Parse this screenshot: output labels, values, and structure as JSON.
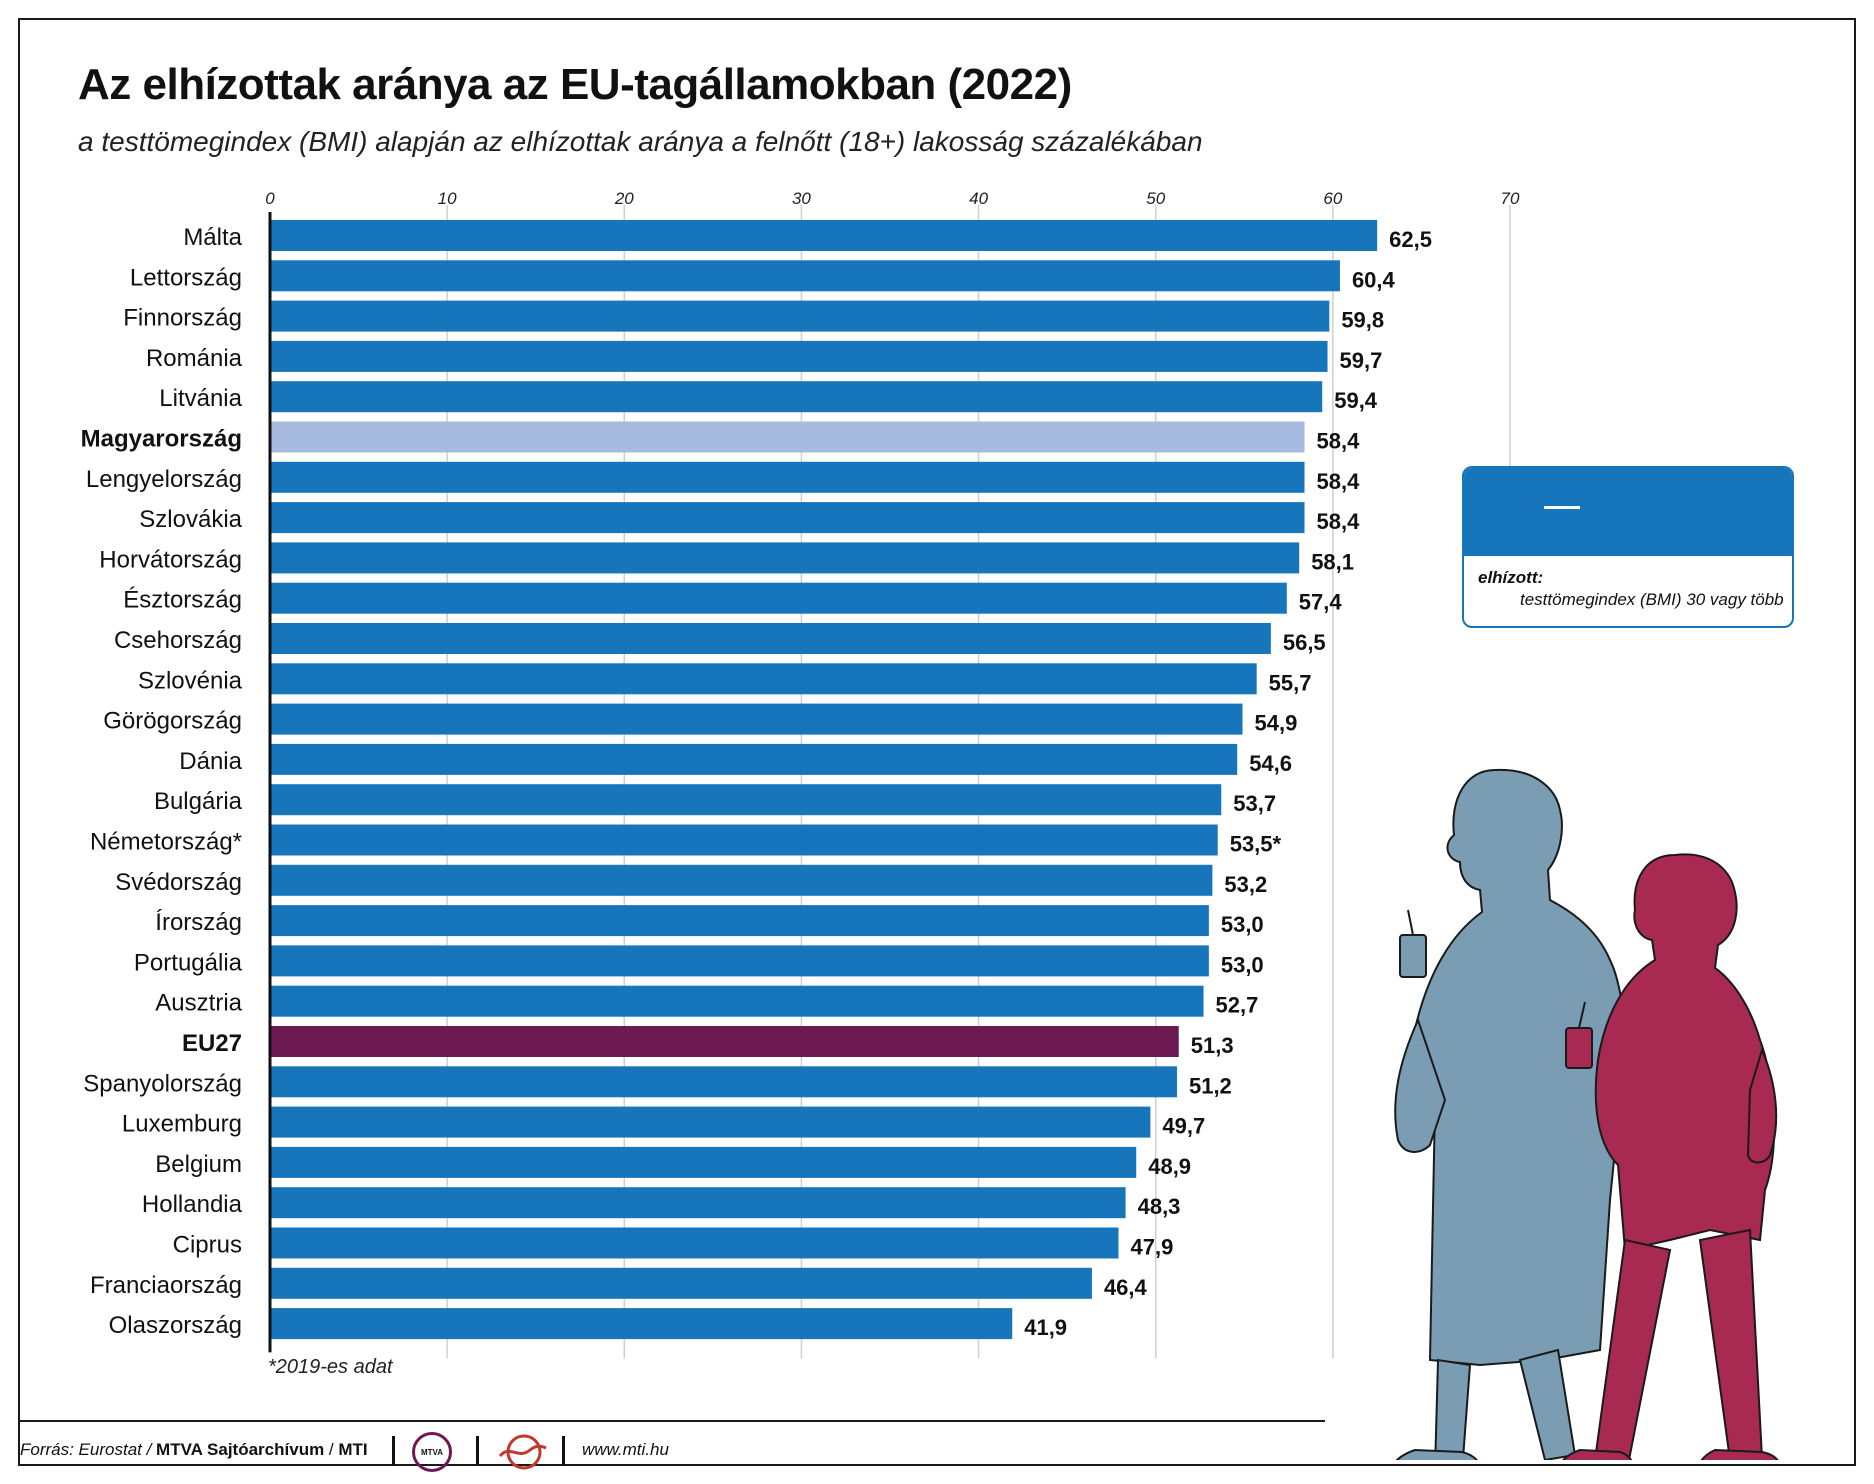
{
  "header": {
    "title": "Az elhízottak aránya az EU-tagállamokban (2022)",
    "subtitle": "a testtömegindex (BMI) alapján az elhízottak aránya a felnőtt (18+) lakosság százalékában"
  },
  "chart_data": {
    "type": "bar",
    "orientation": "horizontal",
    "xlim": [
      0,
      70
    ],
    "ticks": [
      "0",
      "10",
      "20",
      "30",
      "40",
      "50",
      "60",
      "70"
    ],
    "grid": true,
    "categories": [
      "Málta",
      "Lettország",
      "Finnország",
      "Románia",
      "Litvánia",
      "Magyarország",
      "Lengyelország",
      "Szlovákia",
      "Horvátország",
      "Észtország",
      "Csehország",
      "Szlovénia",
      "Görögország",
      "Dánia",
      "Bulgária",
      "Németország*",
      "Svédország",
      "Írország",
      "Portugália",
      "Ausztria",
      "EU27",
      "Spanyolország",
      "Luxemburg",
      "Belgium",
      "Hollandia",
      "Ciprus",
      "Franciaország",
      "Olaszország"
    ],
    "values": [
      62.5,
      60.4,
      59.8,
      59.7,
      59.4,
      58.4,
      58.4,
      58.4,
      58.1,
      57.4,
      56.5,
      55.7,
      54.9,
      54.6,
      53.7,
      53.5,
      53.2,
      53.0,
      53.0,
      52.7,
      51.3,
      51.2,
      49.7,
      48.9,
      48.3,
      47.9,
      46.4,
      41.9
    ],
    "value_labels": [
      "62,5",
      "60,4",
      "59,8",
      "59,7",
      "59,4",
      "58,4",
      "58,4",
      "58,4",
      "58,1",
      "57,4",
      "56,5",
      "55,7",
      "54,9",
      "54,6",
      "53,7",
      "53,5*",
      "53,2",
      "53,0",
      "53,0",
      "52,7",
      "51,3",
      "51,2",
      "49,7",
      "48,9",
      "48,3",
      "47,9",
      "46,4",
      "41,9"
    ],
    "highlight": {
      "Magyarország": "#a7badf",
      "EU27": "#6d1a52"
    },
    "bold_categories": [
      "Magyarország",
      "EU27"
    ],
    "colors": {
      "bar": "#1775bc",
      "hungary": "#a7badf",
      "eu27": "#6d1a52"
    }
  },
  "legend": {
    "term": "elhízott:",
    "description": "testtömegindex (BMI) 30 vagy több",
    "color": "#1775bc"
  },
  "note": "*2019-es adat",
  "footer": {
    "source_prefix": "Forrás: Eurostat / ",
    "source_archive": "MTVA Sajtóarchívum",
    "source_sep": " / ",
    "source_mti": "MTI",
    "mtva_logo": "MTVA",
    "website": "www.mti.hu"
  },
  "illustration": {
    "man_color": "#7a9db4",
    "woman_color": "#a82a52"
  }
}
